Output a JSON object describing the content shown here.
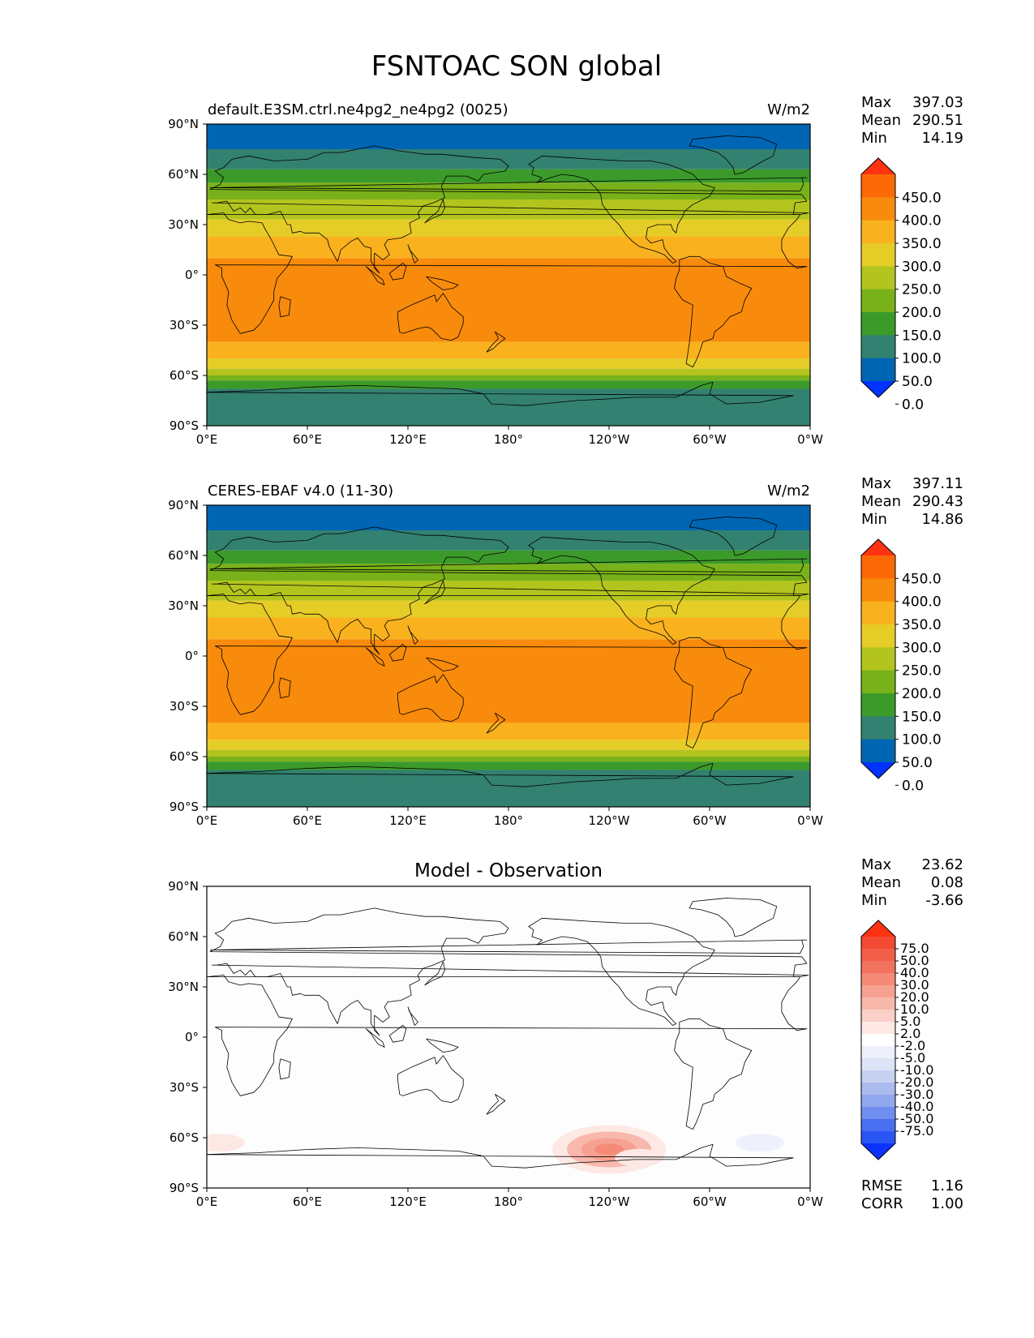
{
  "figure_title": "FSNTOAC SON global",
  "lat_ticks": [
    "90°N",
    "60°N",
    "30°N",
    "0°",
    "30°S",
    "60°S",
    "90°S"
  ],
  "lon_ticks": [
    "0°E",
    "60°E",
    "120°E",
    "180°",
    "120°W",
    "60°W",
    "0°W"
  ],
  "colors": {
    "field_levels": [
      "#0033ff",
      "#0066b3",
      "#338170",
      "#3c9a2a",
      "#78b11a",
      "#b3c41e",
      "#e6cc26",
      "#f9b21e",
      "#f88b0b",
      "#fc6a07",
      "#ff3311"
    ],
    "diff_levels": [
      "#0b33ff",
      "#2a55f5",
      "#4a6ef0",
      "#6f8ef0",
      "#91a7ee",
      "#acbbee",
      "#c6d1f2",
      "#dde4f7",
      "#eef1fb",
      "#ffffff",
      "#fde8e4",
      "#fbd0c8",
      "#f8b8ac",
      "#f6a191",
      "#f48a77",
      "#f2735d",
      "#f25f48",
      "#f24a33",
      "#ff3311"
    ]
  },
  "chart_data": [
    {
      "type": "heatmap",
      "panel": "model",
      "title": "default.E3SM.ctrl.ne4pg2_ne4pg2 (0025)",
      "units": "W/m2",
      "stats": [
        {
          "label": "Max",
          "value": "397.03"
        },
        {
          "label": "Mean",
          "value": "290.51"
        },
        {
          "label": "Min",
          "value": "14.19"
        }
      ],
      "colorbar_levels": [
        0,
        50,
        100,
        150,
        200,
        250,
        300,
        350,
        400,
        450
      ],
      "colorbar_labels": [
        "450.0",
        "400.0",
        "350.0",
        "300.0",
        "250.0",
        "200.0",
        "150.0",
        "100.0",
        "50.0",
        "0.0"
      ],
      "x_range": [
        0,
        360
      ],
      "y_range": [
        -90,
        90
      ],
      "zonal_bands": [
        {
          "lat": [
            75,
            90
          ],
          "value": 25
        },
        {
          "lat": [
            63,
            75
          ],
          "value": 75
        },
        {
          "lat": [
            55,
            63
          ],
          "value": 125
        },
        {
          "lat": [
            45,
            55
          ],
          "value": 175
        },
        {
          "lat": [
            33,
            45
          ],
          "value": 225
        },
        {
          "lat": [
            23,
            33
          ],
          "value": 275
        },
        {
          "lat": [
            10,
            23
          ],
          "value": 325
        },
        {
          "lat": [
            -40,
            10
          ],
          "value": 375
        },
        {
          "lat": [
            -50,
            -40
          ],
          "value": 325
        },
        {
          "lat": [
            -56,
            -50
          ],
          "value": 275
        },
        {
          "lat": [
            -60,
            -56
          ],
          "value": 225
        },
        {
          "lat": [
            -63,
            -60
          ],
          "value": 175
        },
        {
          "lat": [
            -68,
            -63
          ],
          "value": 125
        },
        {
          "lat": [
            -90,
            -68
          ],
          "value": 75
        }
      ]
    },
    {
      "type": "heatmap",
      "panel": "observation",
      "title": "CERES-EBAF v4.0 (11-30)",
      "units": "W/m2",
      "stats": [
        {
          "label": "Max",
          "value": "397.11"
        },
        {
          "label": "Mean",
          "value": "290.43"
        },
        {
          "label": "Min",
          "value": "14.86"
        }
      ],
      "colorbar_levels": [
        0,
        50,
        100,
        150,
        200,
        250,
        300,
        350,
        400,
        450
      ],
      "colorbar_labels": [
        "450.0",
        "400.0",
        "350.0",
        "300.0",
        "250.0",
        "200.0",
        "150.0",
        "100.0",
        "50.0",
        "0.0"
      ],
      "x_range": [
        0,
        360
      ],
      "y_range": [
        -90,
        90
      ],
      "zonal_bands": [
        {
          "lat": [
            75,
            90
          ],
          "value": 25
        },
        {
          "lat": [
            63,
            75
          ],
          "value": 75
        },
        {
          "lat": [
            55,
            63
          ],
          "value": 125
        },
        {
          "lat": [
            45,
            55
          ],
          "value": 175
        },
        {
          "lat": [
            33,
            45
          ],
          "value": 225
        },
        {
          "lat": [
            23,
            33
          ],
          "value": 275
        },
        {
          "lat": [
            10,
            23
          ],
          "value": 325
        },
        {
          "lat": [
            -40,
            10
          ],
          "value": 375
        },
        {
          "lat": [
            -50,
            -40
          ],
          "value": 325
        },
        {
          "lat": [
            -56,
            -50
          ],
          "value": 275
        },
        {
          "lat": [
            -60,
            -56
          ],
          "value": 225
        },
        {
          "lat": [
            -63,
            -60
          ],
          "value": 175
        },
        {
          "lat": [
            -68,
            -63
          ],
          "value": 125
        },
        {
          "lat": [
            -90,
            -68
          ],
          "value": 75
        }
      ]
    },
    {
      "type": "heatmap",
      "panel": "difference",
      "title": "Model - Observation",
      "units": "",
      "stats": [
        {
          "label": "Max",
          "value": "23.62"
        },
        {
          "label": "Mean",
          "value": "0.08"
        },
        {
          "label": "Min",
          "value": "-3.66"
        }
      ],
      "colorbar_labels": [
        "75.0",
        "50.0",
        "40.0",
        "30.0",
        "20.0",
        "10.0",
        "5.0",
        "2.0",
        "-2.0",
        "-5.0",
        "-10.0",
        "-20.0",
        "-30.0",
        "-40.0",
        "-50.0",
        "-75.0"
      ],
      "extra_stats": [
        {
          "label": "RMSE",
          "value": "1.16"
        },
        {
          "label": "CORR",
          "value": "1.00"
        }
      ],
      "x_range": [
        0,
        360
      ],
      "y_range": [
        -90,
        90
      ],
      "anomalies": [
        {
          "lon": 240,
          "lat": -67,
          "value": 23.6
        },
        {
          "lon": 330,
          "lat": -63,
          "value": -3.7
        },
        {
          "lon": 8,
          "lat": -63,
          "value": 2.5
        },
        {
          "lon": 258,
          "lat": -72,
          "value": 3.0
        }
      ]
    }
  ]
}
